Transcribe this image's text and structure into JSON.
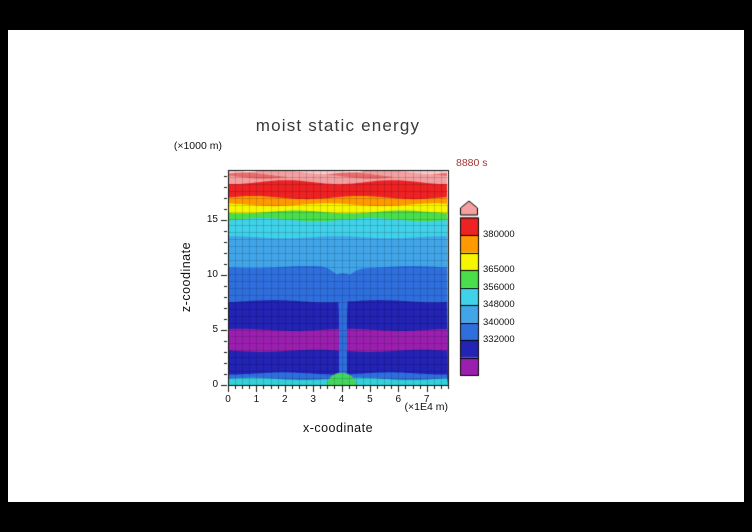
{
  "chart_data": {
    "type": "heatmap",
    "title": "moist static energy",
    "time_label": "8880 s",
    "xlabel": "x-coodinate",
    "x_unit": "(×1E4 m)",
    "ylabel": "z-coodinate",
    "y_unit": "(×1000 m)",
    "x_range": [
      0,
      7.75
    ],
    "z_range": [
      0,
      19.5
    ],
    "x_ticks": [
      0,
      1,
      2,
      3,
      4,
      5,
      6,
      7
    ],
    "x_minor_step": 0.25,
    "y_ticks": [
      0,
      5,
      10,
      15
    ],
    "y_minor_step": 1,
    "grid": {
      "nx": 31,
      "nz": 31
    },
    "contour_levels_labeled": [
      332000,
      340000,
      348000,
      356000,
      365000,
      380000
    ],
    "bands": [
      {
        "z0": 0.0,
        "z1": 0.55,
        "color": "#35d0d8"
      },
      {
        "z0": 0.55,
        "z1": 1.05,
        "color": "#2f6fdd"
      },
      {
        "z0": 1.05,
        "z1": 3.1,
        "color": "#2323b4"
      },
      {
        "z0": 3.1,
        "z1": 5.0,
        "color": "#9b1fae"
      },
      {
        "z0": 5.0,
        "z1": 7.6,
        "color": "#2323b4"
      },
      {
        "z0": 7.6,
        "z1": 10.7,
        "color": "#2f6fdd",
        "dip": 10
      },
      {
        "z0": 10.7,
        "z1": 13.4,
        "color": "#41a6e8"
      },
      {
        "z0": 13.4,
        "z1": 15.0,
        "color": "#3fd2e8",
        "amp": 1.6
      },
      {
        "z0": 15.0,
        "z1": 15.7,
        "color": "#4ade4a",
        "amp": 1.4
      },
      {
        "z0": 15.7,
        "z1": 16.35,
        "color": "#f6f600",
        "amp": 1.4
      },
      {
        "z0": 16.35,
        "z1": 17.0,
        "color": "#ff9900",
        "amp": 1.6
      },
      {
        "z0": 17.0,
        "z1": 18.4,
        "color": "#ee2222",
        "amp": 2.0
      },
      {
        "z0": 18.4,
        "z1": 18.9,
        "color": "#f4a0a0",
        "amp": 2.2
      },
      {
        "z0": 18.9,
        "z1": 19.05,
        "color": "#e96a6a",
        "amp": 2.4
      },
      {
        "z0": 19.05,
        "z1": 19.3,
        "color": "#f4a0a0",
        "amp": 2.4
      },
      {
        "z0": 19.3,
        "z1": 19.5,
        "color": "#f8c9c9",
        "amp": 2.0
      }
    ],
    "plume": {
      "x": 4.05,
      "width": 0.28,
      "z_bottom": 0.9,
      "z_top": 9.7,
      "color": "#2f6fdd"
    },
    "surface_bump": {
      "x": 4.0,
      "rx_units": 0.55,
      "height_units": 1.1,
      "color": "#44d65c"
    },
    "colorbar": {
      "cells": [
        "#9b1fae",
        "#2323b4",
        "#2f6fdd",
        "#41a6e8",
        "#3fd2e8",
        "#4ade4a",
        "#f6f600",
        "#ff9900",
        "#ee2222"
      ],
      "arrow_color": "#f4a0a0",
      "labels": [
        {
          "text": "380000",
          "boundary": 8
        },
        {
          "text": "365000",
          "boundary": 6
        },
        {
          "text": "356000",
          "boundary": 5
        },
        {
          "text": "348000",
          "boundary": 4
        },
        {
          "text": "340000",
          "boundary": 3
        },
        {
          "text": "332000",
          "boundary": 2
        }
      ]
    },
    "colors": {
      "title": "#3a3a3a",
      "time_label": "#a33636",
      "axis": "#111111"
    }
  }
}
